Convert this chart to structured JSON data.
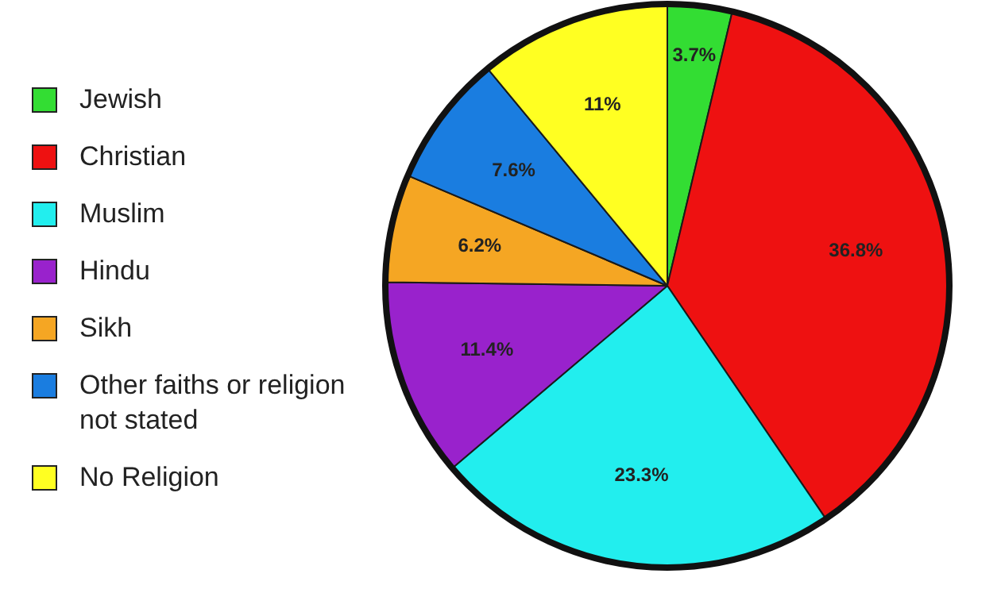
{
  "chart_data": {
    "type": "pie",
    "categories": [
      "Jewish",
      "Christian",
      "Muslim",
      "Hindu",
      "Sikh",
      "Other faiths or religion not stated",
      "No Religion"
    ],
    "values": [
      3.7,
      36.8,
      23.3,
      11.4,
      6.2,
      7.6,
      11
    ],
    "value_labels": [
      "3.7%",
      "36.8%",
      "23.3%",
      "11.4%",
      "6.2%",
      "7.6%",
      "11%"
    ],
    "colors": [
      "#33dd33",
      "#ee1111",
      "#22eeee",
      "#9922cc",
      "#f5a623",
      "#1a7de0",
      "#ffff22"
    ],
    "legend": "left"
  }
}
